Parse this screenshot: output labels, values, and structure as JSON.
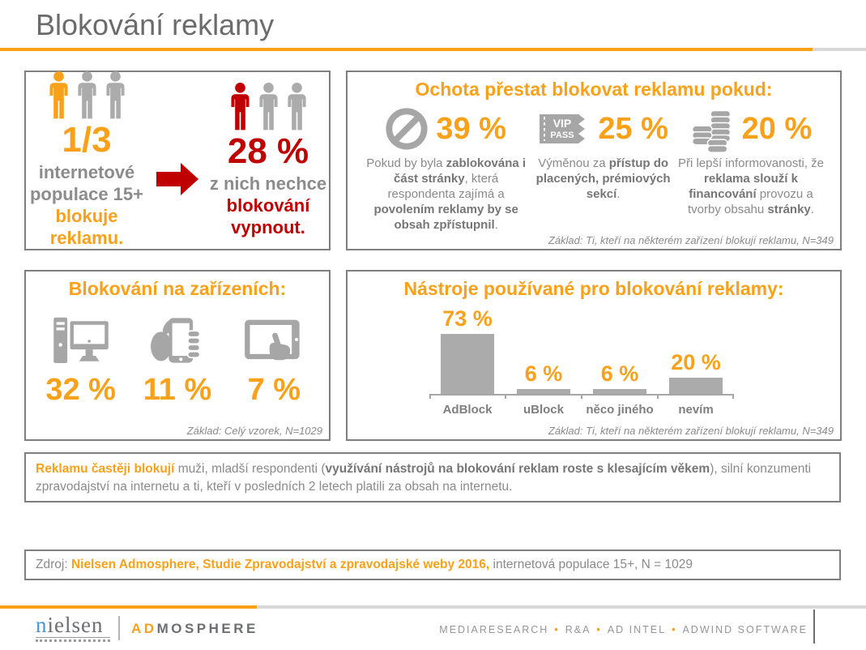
{
  "page": {
    "title": "Blokování reklamy"
  },
  "colors": {
    "orange": "#F9A11B",
    "dark_red": "#C00000",
    "gray_text": "#8A8A8A",
    "icon_gray": "#A6A6A6",
    "bar_gray": "#ABABAB",
    "border_gray": "#7F7F7F",
    "nielsen_blue": "#4596D1"
  },
  "population_box": {
    "left": {
      "icon": "person-icon",
      "value": "1/3",
      "lines": [
        "internetové",
        "populace 15+",
        "blokuje reklamu."
      ]
    },
    "arrow_icon": "arrow-right-icon",
    "right": {
      "icon": "person-icon",
      "value": "28 %",
      "lines": [
        "z nich nechce",
        "blokování",
        "vypnout."
      ]
    }
  },
  "willingness_box": {
    "title": "Ochota přestat blokovat reklamu pokud:",
    "items": [
      {
        "icon": "no-sign-icon",
        "value": "39 %",
        "segments": {
          "t0": "Pokud by byla ",
          "b1": "zablokována i část stránky",
          "t2": ", která respondenta zajímá a ",
          "b3": "povolením reklamy by se obsah zpřístupnil",
          "t4": "."
        }
      },
      {
        "icon": "vip-pass-icon",
        "icon_text": {
          "line1": "VIP",
          "line2": "PASS"
        },
        "value": "25 %",
        "segments": {
          "t0": "Výměnou za ",
          "b1": "přístup do placených, prémiových sekcí",
          "t2": "."
        }
      },
      {
        "icon": "coins-icon",
        "value": "20 %",
        "segments": {
          "t0": "Při lepší informovanosti, že ",
          "b1": "reklama slouží k financování",
          "t2": " provozu a tvorby obsahu ",
          "b3": "stránky",
          "t4": "."
        }
      }
    ],
    "footnote": "Základ: Ti, kteří na některém zařízení blokují reklamu, N=349"
  },
  "devices_box": {
    "title": "Blokování na zařízeních:",
    "items": [
      {
        "icon": "desktop-icon",
        "label": "počítač",
        "value": "32 %"
      },
      {
        "icon": "phone-in-hand-icon",
        "label": "mobil",
        "value": "11 %"
      },
      {
        "icon": "tablet-touch-icon",
        "label": "tablet",
        "value": "7 %"
      }
    ],
    "footnote": "Základ: Celý vzorek, N=1029"
  },
  "chart_data": {
    "type": "bar",
    "title": "Nástroje používané pro blokování reklamy:",
    "categories": [
      "AdBlock",
      "uBlock",
      "něco jiného",
      "nevím"
    ],
    "values": [
      73,
      6,
      6,
      20
    ],
    "value_labels": [
      "73 %",
      "6 %",
      "6 %",
      "20 %"
    ],
    "unit": "%",
    "xlabel": "",
    "ylabel": "",
    "ylim": [
      0,
      100
    ],
    "grid": false,
    "legend": false,
    "bar_color": "#ABABAB",
    "label_color": "#F9A11B",
    "footnote": "Základ: Ti, kteří na některém zařízení blokují reklamu, N=349"
  },
  "highlight_box": {
    "segments": {
      "o0": "Reklamu častěji blokují",
      "t1": " muži, mladší respondenti (",
      "b2": "využívání nástrojů na blokování reklam roste s klesajícím věkem",
      "t3": "), silní konzumenti zpravodajství na internetu a ti, kteří v posledních 2 letech platili za obsah na internetu."
    }
  },
  "source_box": {
    "segments": {
      "t0": "Zdroj: ",
      "o1": "Nielsen Admosphere, Studie Zpravodajství a zpravodajské weby 2016,",
      "t2": " internetová populace 15+, N = 1029"
    }
  },
  "footer": {
    "brand": {
      "nielsen_first": "n",
      "nielsen_rest": "ielsen",
      "admosphere_prefix": "AD",
      "admosphere_rest": "MOSPHERE"
    },
    "tagline": {
      "items": [
        "MEDIARESEARCH",
        "R&A",
        "AD INTEL",
        "ADWIND SOFTWARE"
      ],
      "separator": "•"
    }
  }
}
